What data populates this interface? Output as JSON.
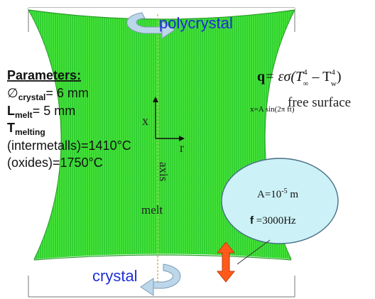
{
  "labels": {
    "top": "polycrystal",
    "bottom": "crystal",
    "melt": "melt",
    "axis": "axis",
    "x_axis": "x",
    "r_axis": "r",
    "free_surface": "free surface",
    "oscillation": "x=A sin(2π ft)"
  },
  "parameters": {
    "heading": "Parameters:",
    "diameter_symbol": "∅",
    "diameter_sub": "crystal",
    "diameter_value": "= 6 mm",
    "length_symbol": "L",
    "length_sub": "melt",
    "length_value": "= 5 mm",
    "temp_symbol": "T",
    "temp_sub": "melting",
    "temp_intermetalls": "(intermetalls)=1410°C",
    "temp_oxides": "(oxides)=1750°C"
  },
  "formula": {
    "lhs": "q",
    "mid": "= εσ(T",
    "inf_sup": "4",
    "inf_sub": "∞",
    "minus": " – T",
    "w_sup": "4",
    "w_sub": "w",
    "close": ")"
  },
  "bubble": {
    "amplitude_prefix": "A=10",
    "amplitude_exp": "-5",
    "amplitude_unit": " m",
    "frequency_label": "f",
    "frequency_value": " =3000Hz"
  },
  "colors": {
    "melt_green": "#33dd33",
    "melt_green_light": "#66ff44",
    "label_blue": "#1f2fd6",
    "bubble_fill": "#ccf2f8",
    "double_arrow": "#ff5a1a",
    "rotation_arrow": "#bcd6ea"
  }
}
